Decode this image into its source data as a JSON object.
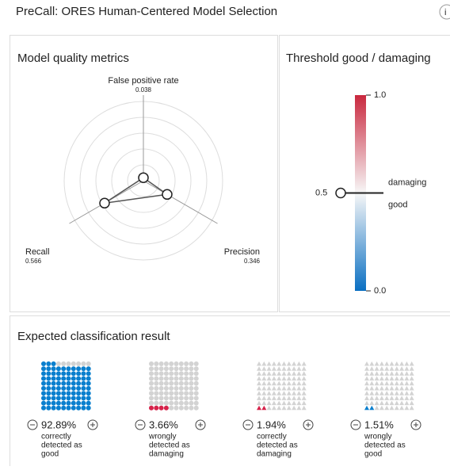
{
  "header": {
    "title": "PreCall: ORES Human-Centered Model Selection",
    "info": "i"
  },
  "metrics_panel": {
    "title": "Model quality metrics",
    "rlim": [
      0,
      1
    ],
    "axes": [
      {
        "name": "False positive rate",
        "value": 0.038
      },
      {
        "name": "Precision",
        "value": 0.346
      },
      {
        "name": "Recall",
        "value": 0.566
      }
    ]
  },
  "threshold_panel": {
    "title": "Threshold good / damaging",
    "ticks": [
      {
        "value": 1,
        "label": "1.0"
      },
      {
        "value": 0,
        "label": "0.0"
      }
    ],
    "threshold": {
      "value": 0.5,
      "label": "0.5"
    },
    "above_label": "damaging",
    "below_label": "good"
  },
  "result_panel": {
    "title": "Expected classification result",
    "groups": [
      {
        "value": 92.89,
        "value_label": "92.89%",
        "line1": "correctly",
        "line2": "detected as",
        "class": "good",
        "color": "#0a7fce",
        "shape": "circle"
      },
      {
        "value": 3.66,
        "value_label": "3.66%",
        "line1": "wrongly",
        "line2": "detected as",
        "class": "damaging",
        "color": "#d6224a",
        "shape": "circle"
      },
      {
        "value": 1.94,
        "value_label": "1.94%",
        "line1": "correctly",
        "line2": "detected as",
        "class": "damaging",
        "color": "#d6224a",
        "shape": "triangle"
      },
      {
        "value": 1.51,
        "value_label": "1.51%",
        "line1": "wrongly",
        "line2": "detected as",
        "class": "good",
        "color": "#0a7fce",
        "shape": "triangle"
      }
    ]
  }
}
